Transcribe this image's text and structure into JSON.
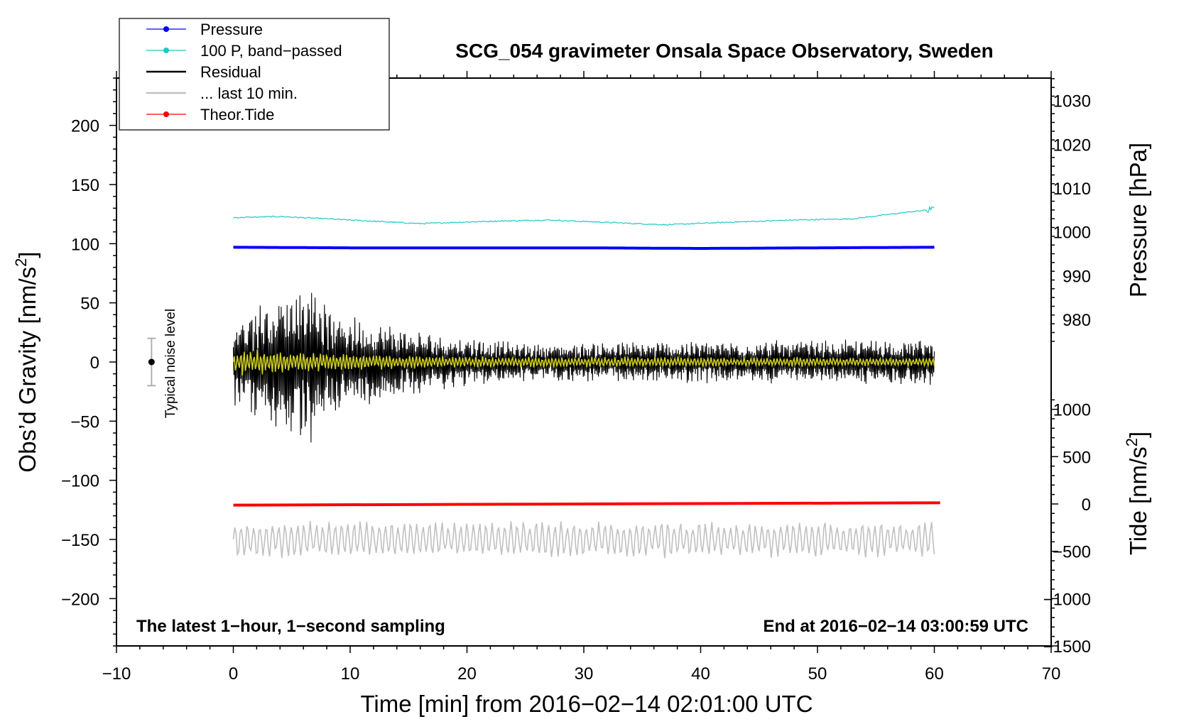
{
  "chart_data": {
    "type": "line",
    "title": "SCG_054 gravimeter Onsala Space Observatory, Sweden",
    "xlabel": "Time [min] from 2016−02−14 02:01:00 UTC",
    "ylabel_left_main": "Obs’d Gravity [nm/s",
    "ylabel_left_sup": "2",
    "ylabel_left_end": "]",
    "ylabel_right_top": "Pressure [hPa]",
    "ylabel_right_bottom_main": "Tide [nm/s",
    "ylabel_right_bottom_sup": "2",
    "ylabel_right_bottom_end": "]",
    "xlim": [
      -10,
      70
    ],
    "ylim_left": [
      -240,
      240
    ],
    "x_ticks": [
      -10,
      0,
      10,
      20,
      30,
      40,
      50,
      60,
      70
    ],
    "x_tick_labels": [
      "−10",
      "0",
      "10",
      "20",
      "30",
      "40",
      "50",
      "60",
      "70"
    ],
    "y_left_ticks": [
      200,
      150,
      100,
      50,
      0,
      -50,
      -100,
      -150,
      -200
    ],
    "y_left_tick_labels": [
      "200",
      "150",
      "100",
      "50",
      "0",
      "−50",
      "−100",
      "−150",
      "−200"
    ],
    "pressure_axis": {
      "ticks": [
        1030,
        1020,
        1010,
        1000,
        990,
        980
      ],
      "tick_labels": [
        "1030",
        "1020",
        "1010",
        "1000",
        "990",
        "980"
      ],
      "gravity_at_980": 36,
      "gravity_at_1030": 221
    },
    "tide_axis": {
      "ticks": [
        1000,
        500,
        0,
        -500,
        -1000,
        -1500
      ],
      "tick_labels": [
        "1000",
        "500",
        "0",
        "−500",
        "−1000",
        "−1500"
      ],
      "gravity_at_minus1500": -240,
      "gravity_at_1000": -40
    },
    "annotations": {
      "bottom_left": "The latest 1−hour, 1−second sampling",
      "bottom_right": "End at 2016−02−14 03:00:59 UTC",
      "noise_label": "Typical noise level"
    },
    "noise_bar": {
      "x": -7,
      "center": 0,
      "half_range": 20
    },
    "legend": {
      "position": "top-left",
      "entries": [
        {
          "label": "Pressure",
          "color": "#0000ff",
          "marker": "dot"
        },
        {
          "label": "100 P, band−passed",
          "color": "#22c8c8",
          "marker": "dot"
        },
        {
          "label": "Residual",
          "color": "#000000",
          "marker": "none"
        },
        {
          "label": "... last 10 min.",
          "color": "#c0c0c0",
          "marker": "none"
        },
        {
          "label": "Theor.Tide",
          "color": "#ff0000",
          "marker": "dot"
        }
      ]
    },
    "series": [
      {
        "name": "Pressure",
        "color": "#0000ff",
        "x": [
          0,
          10,
          20,
          30,
          40,
          50,
          60
        ],
        "y": [
          97,
          96.5,
          96.5,
          96.5,
          96,
          96.5,
          97
        ]
      },
      {
        "name": "100 P, band−passed",
        "color": "#22c8c8",
        "x": [
          0,
          4,
          10,
          16,
          22,
          27,
          32,
          37,
          42,
          48,
          53,
          58,
          60
        ],
        "y": [
          122,
          123,
          120,
          117,
          119,
          120,
          118,
          116,
          118,
          120,
          121,
          127,
          129
        ]
      },
      {
        "name": "Theor.Tide",
        "color": "#ff0000",
        "x": [
          0,
          60.5
        ],
        "y": [
          -121,
          -119
        ]
      },
      {
        "name": "Residual",
        "color": "#000000",
        "x_range": [
          0,
          60
        ],
        "envelope": [
          [
            0,
            35
          ],
          [
            7,
            70
          ],
          [
            8,
            40
          ],
          [
            17,
            22
          ],
          [
            25,
            15
          ],
          [
            60,
            18
          ]
        ]
      },
      {
        "name": "Residual (filtered)",
        "color": "#cccc22",
        "x_range": [
          0,
          60
        ],
        "envelope": [
          [
            0,
            12
          ],
          [
            8,
            8
          ],
          [
            20,
            5
          ],
          [
            60,
            4
          ]
        ]
      },
      {
        "name": "... last 10 min.",
        "color": "#c0c0c0",
        "x_range": [
          0,
          60
        ],
        "center": -150,
        "envelope": [
          [
            0,
            14
          ],
          [
            60,
            14
          ]
        ]
      }
    ]
  }
}
